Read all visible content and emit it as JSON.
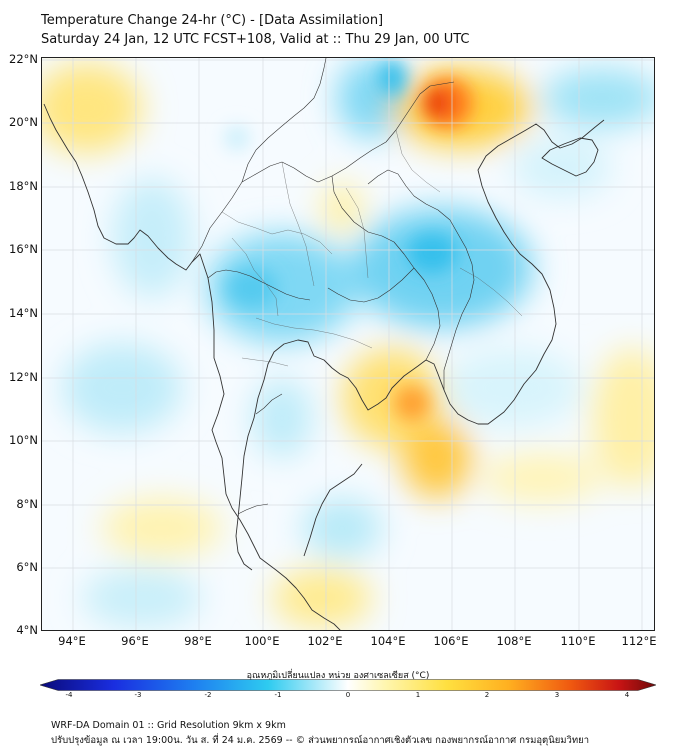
{
  "header": {
    "title_line1": "Temperature Change 24-hr (°C) - [Data Assimilation]",
    "title_line2": "Saturday 24 Jan, 12 UTC FCST+108, Valid at :: Thu 29 Jan, 00 UTC"
  },
  "map": {
    "lat_labels": [
      "22°N",
      "20°N",
      "18°N",
      "16°N",
      "14°N",
      "12°N",
      "10°N",
      "8°N",
      "6°N",
      "4°N"
    ],
    "lon_labels": [
      "94°E",
      "96°E",
      "98°E",
      "100°E",
      "102°E",
      "104°E",
      "106°E",
      "108°E",
      "110°E",
      "112°E"
    ],
    "colors": {
      "cold_strong": "#1fb6e8",
      "cold_light": "#9fe3f6",
      "neutral": "#f4fbff",
      "warm_light": "#fff3a8",
      "warm": "#ffd84a",
      "hot": "#ff7a1a",
      "hottest": "#e8320f"
    }
  },
  "colorbar": {
    "title": "อุณหภูมิเปลี่ยนแปลง หน่วย องศาเซลเซียส (°C)",
    "ticks": [
      "-4",
      "-3",
      "-2",
      "-1",
      "0",
      "1",
      "2",
      "3",
      "4"
    ]
  },
  "footer": {
    "line1": "WRF-DA Domain 01 :: Grid Resolution 9km x 9km",
    "line2": "ปรับปรุงข้อมูล ณ เวลา 19:00น. วัน ส. ที่ 24 ม.ค. 2569 -- © ส่วนพยากรณ์อากาศเชิงตัวเลข กองพยากรณ์อากาศ กรมอุตุนิยมวิทยา"
  }
}
